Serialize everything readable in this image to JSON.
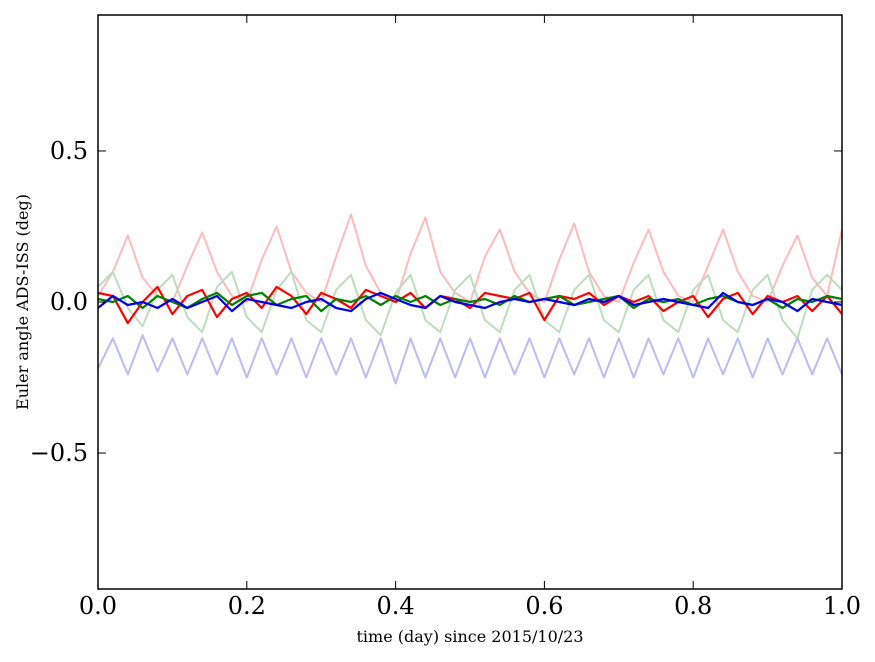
{
  "chart_data": {
    "type": "line",
    "xlabel": "time (day) since 2015/10/23",
    "ylabel": "Euler angle ADS-ISS (deg)",
    "xlim": [
      0.0,
      1.0
    ],
    "ylim": [
      -0.95,
      0.95
    ],
    "xticks": [
      0.0,
      0.2,
      0.4,
      0.6,
      0.8,
      1.0
    ],
    "xtick_labels": [
      "0.0",
      "0.2",
      "0.4",
      "0.6",
      "0.8",
      "1.0"
    ],
    "yticks": [
      -0.5,
      0.0,
      0.5
    ],
    "ytick_labels": [
      "−0.5",
      "0.0",
      "0.5"
    ],
    "grid": false,
    "legend": "none",
    "x": [
      0.0,
      0.02,
      0.04,
      0.06,
      0.08,
      0.1,
      0.12,
      0.14,
      0.16,
      0.18,
      0.2,
      0.22,
      0.24,
      0.26,
      0.28,
      0.3,
      0.32,
      0.34,
      0.36,
      0.38,
      0.4,
      0.42,
      0.44,
      0.46,
      0.48,
      0.5,
      0.52,
      0.54,
      0.56,
      0.58,
      0.6,
      0.62,
      0.64,
      0.66,
      0.68,
      0.7,
      0.72,
      0.74,
      0.76,
      0.78,
      0.8,
      0.82,
      0.84,
      0.86,
      0.88,
      0.9,
      0.92,
      0.94,
      0.96,
      0.98,
      1.0
    ],
    "series": [
      {
        "color": "#ffbbbb",
        "values": [
          0.02,
          0.1,
          0.22,
          0.08,
          0.02,
          0.0,
          0.12,
          0.23,
          0.1,
          0.02,
          0.0,
          0.14,
          0.25,
          0.1,
          0.03,
          0.0,
          0.15,
          0.29,
          0.12,
          0.03,
          0.0,
          0.16,
          0.28,
          0.1,
          0.03,
          0.0,
          0.15,
          0.24,
          0.1,
          0.03,
          0.0,
          0.14,
          0.26,
          0.1,
          0.02,
          0.0,
          0.13,
          0.24,
          0.1,
          0.02,
          0.0,
          0.12,
          0.24,
          0.1,
          0.02,
          0.0,
          0.12,
          0.22,
          0.08,
          0.02,
          0.24
        ]
      },
      {
        "color": "#bbddbb",
        "values": [
          0.05,
          0.1,
          -0.02,
          -0.08,
          0.04,
          0.09,
          -0.05,
          -0.1,
          0.05,
          0.1,
          -0.05,
          -0.1,
          0.04,
          0.1,
          -0.06,
          -0.1,
          0.04,
          0.09,
          -0.06,
          -0.11,
          0.03,
          0.09,
          -0.06,
          -0.1,
          0.04,
          0.09,
          -0.06,
          -0.1,
          0.04,
          0.09,
          -0.06,
          -0.1,
          0.04,
          0.09,
          -0.06,
          -0.1,
          0.04,
          0.09,
          -0.06,
          -0.1,
          0.04,
          0.09,
          -0.06,
          -0.1,
          0.04,
          0.09,
          -0.06,
          -0.12,
          0.04,
          0.09,
          0.04
        ]
      },
      {
        "color": "#bbbbf5",
        "values": [
          -0.22,
          -0.12,
          -0.24,
          -0.11,
          -0.23,
          -0.12,
          -0.24,
          -0.12,
          -0.24,
          -0.12,
          -0.25,
          -0.12,
          -0.24,
          -0.12,
          -0.25,
          -0.12,
          -0.24,
          -0.12,
          -0.25,
          -0.12,
          -0.27,
          -0.12,
          -0.25,
          -0.12,
          -0.25,
          -0.12,
          -0.25,
          -0.12,
          -0.24,
          -0.12,
          -0.25,
          -0.12,
          -0.24,
          -0.12,
          -0.25,
          -0.12,
          -0.25,
          -0.12,
          -0.24,
          -0.12,
          -0.25,
          -0.12,
          -0.24,
          -0.12,
          -0.25,
          -0.12,
          -0.24,
          -0.12,
          -0.24,
          -0.12,
          -0.24
        ]
      },
      {
        "color": "#ff0000",
        "values": [
          0.03,
          0.02,
          -0.07,
          0.0,
          0.05,
          -0.04,
          0.02,
          0.04,
          -0.05,
          0.01,
          0.03,
          -0.02,
          0.05,
          0.02,
          -0.04,
          0.03,
          0.01,
          -0.02,
          0.04,
          0.02,
          0.0,
          0.03,
          -0.02,
          0.02,
          0.01,
          -0.02,
          0.03,
          0.02,
          0.01,
          0.03,
          -0.06,
          0.02,
          0.01,
          0.03,
          -0.01,
          0.02,
          0.0,
          0.02,
          -0.03,
          0.0,
          0.02,
          -0.05,
          0.01,
          0.03,
          -0.04,
          0.02,
          0.0,
          0.02,
          -0.03,
          0.02,
          -0.04
        ]
      },
      {
        "color": "#008000",
        "values": [
          0.01,
          0.0,
          0.02,
          -0.02,
          0.02,
          0.0,
          -0.02,
          0.01,
          0.03,
          -0.01,
          0.02,
          0.03,
          -0.01,
          0.01,
          0.02,
          -0.03,
          0.01,
          0.0,
          0.02,
          -0.01,
          0.02,
          0.0,
          0.02,
          -0.01,
          0.01,
          0.0,
          0.01,
          -0.01,
          0.02,
          0.0,
          0.01,
          0.02,
          -0.01,
          0.0,
          0.01,
          0.02,
          -0.02,
          0.01,
          0.0,
          0.01,
          -0.01,
          0.01,
          0.02,
          0.0,
          -0.01,
          0.01,
          -0.02,
          0.01,
          0.0,
          0.02,
          0.01
        ]
      },
      {
        "color": "#0000dd",
        "values": [
          -0.02,
          0.02,
          -0.01,
          0.0,
          -0.02,
          0.01,
          -0.02,
          0.0,
          0.02,
          -0.03,
          0.01,
          0.0,
          -0.01,
          -0.02,
          0.0,
          0.01,
          -0.02,
          -0.03,
          0.01,
          0.03,
          0.01,
          -0.01,
          -0.02,
          0.02,
          0.0,
          -0.01,
          -0.02,
          0.0,
          0.01,
          0.0,
          0.01,
          0.0,
          -0.01,
          0.01,
          0.0,
          0.02,
          -0.01,
          0.0,
          0.01,
          0.0,
          -0.01,
          -0.02,
          0.03,
          0.0,
          -0.01,
          0.01,
          0.0,
          -0.03,
          0.01,
          0.0,
          -0.01
        ]
      }
    ]
  }
}
